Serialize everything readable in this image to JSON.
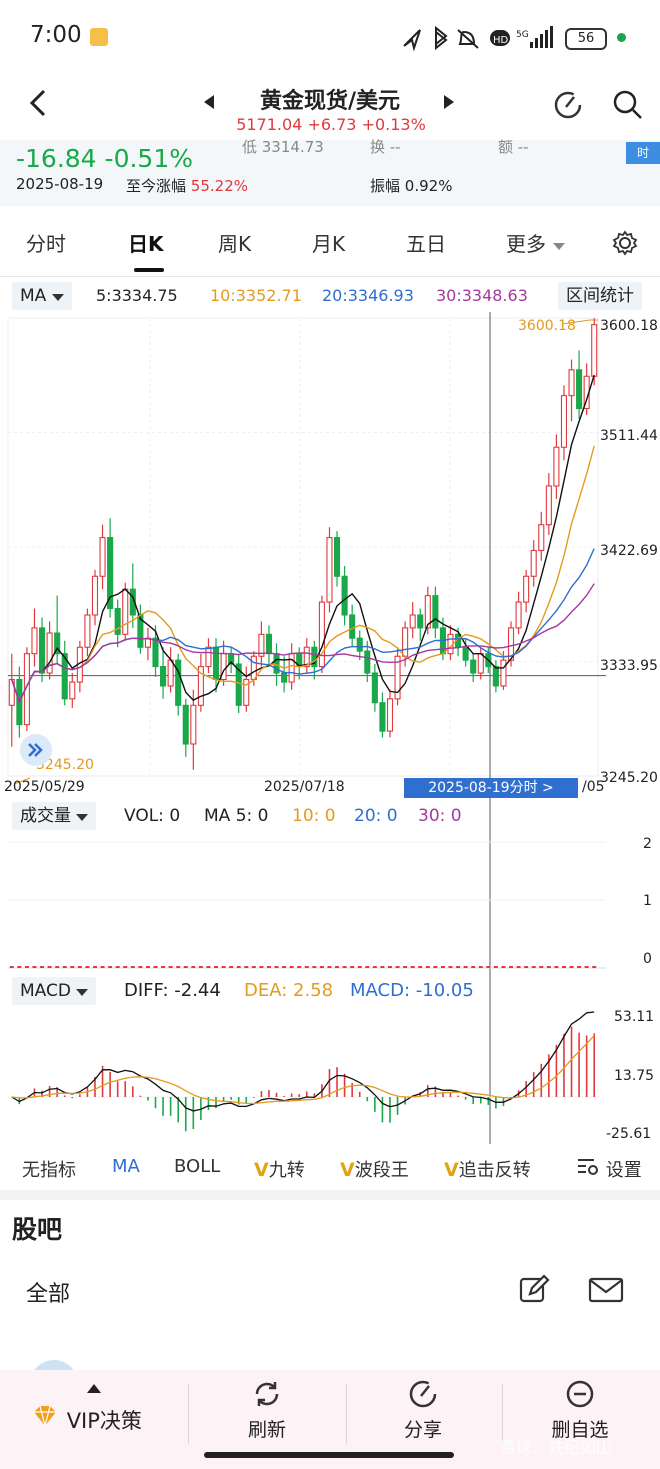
{
  "status_bar": {
    "time": "7:00",
    "battery": "56",
    "icons": "location bluetooth mute HD 5G signal"
  },
  "header": {
    "title": "黄金现货/美元",
    "price": "5171.04",
    "change": "+6.73",
    "pct": "+0.13%"
  },
  "quote": {
    "change": "-16.84",
    "change_pct": "-0.51%",
    "date": "2025-08-19",
    "since_label": "至今涨幅",
    "since_value": "55.22%",
    "low_label": "低 3314.73",
    "turnover_label": "换 --",
    "amount_label": "额 --",
    "amplitude_label": "振幅",
    "amplitude_value": "0.92%",
    "badge": "时"
  },
  "tabs": [
    "分时",
    "日K",
    "周K",
    "月K",
    "五日",
    "更多"
  ],
  "ma": {
    "selector": "MA",
    "ma5": "5:3334.75",
    "ma10": "10:3352.71",
    "ma20": "20:3346.93",
    "ma30": "30:3348.63",
    "range_stat": "区间统计"
  },
  "price_axis": {
    "top": "3600.18",
    "y2": "3511.44",
    "y3": "3422.69",
    "y4": "3333.95",
    "bottom": "3245.20",
    "max_label": "3600.18",
    "min_label": "3245.20"
  },
  "date_axis": {
    "start": "2025/05/29",
    "mid": "2025/07/18",
    "end_partial": "/05",
    "cursor": "2025-08-19分时  >"
  },
  "volume": {
    "selector": "成交量",
    "vol": "VOL: 0",
    "ma5": "MA 5: 0",
    "ma10": "10: 0",
    "ma20": "20: 0",
    "ma30": "30: 0",
    "axis_top": "2",
    "axis_mid": "1",
    "axis_bottom": "0"
  },
  "macd": {
    "selector": "MACD",
    "diff": "DIFF: -2.44",
    "dea": "DEA: 2.58",
    "macd": "MACD: -10.05",
    "axis_top": "53.11",
    "axis_mid": "13.75",
    "axis_bottom": "-25.61"
  },
  "indicators": {
    "none": "无指标",
    "ma": "MA",
    "boll": "BOLL",
    "v_glyph": "V",
    "jiuzhuan": "九转",
    "boduanwang": "波段王",
    "zhuiji": "追击反转",
    "settings": "设置"
  },
  "guba": {
    "title": "股吧",
    "tab_all": "全部"
  },
  "bottom_nav": {
    "vip": "VIP决策",
    "refresh": "刷新",
    "share": "分享",
    "remove": "删自选"
  },
  "watermark": "雪球：铁纪如山",
  "colors": {
    "up": "#e0393e",
    "down": "#19a84a",
    "ma5": "#111111",
    "ma10": "#e39a1f",
    "ma20": "#2f6fd0",
    "ma30": "#a43a9e",
    "accent": "#2f6fd0"
  },
  "chart_data": {
    "type": "candlestick",
    "x_start": "2025/05/29",
    "x_mid": "2025/07/18",
    "ylim": [
      3245.2,
      3600.18
    ],
    "candles": [
      [
        3300,
        3320,
        3340,
        3268
      ],
      [
        3320,
        3285,
        3330,
        3275
      ],
      [
        3285,
        3340,
        3345,
        3280
      ],
      [
        3340,
        3360,
        3375,
        3330
      ],
      [
        3360,
        3325,
        3368,
        3318
      ],
      [
        3325,
        3356,
        3365,
        3320
      ],
      [
        3356,
        3340,
        3385,
        3332
      ],
      [
        3340,
        3305,
        3350,
        3300
      ],
      [
        3305,
        3318,
        3325,
        3298
      ],
      [
        3318,
        3345,
        3350,
        3310
      ],
      [
        3345,
        3370,
        3375,
        3338
      ],
      [
        3370,
        3400,
        3405,
        3362
      ],
      [
        3400,
        3430,
        3440,
        3390
      ],
      [
        3430,
        3375,
        3445,
        3368
      ],
      [
        3375,
        3355,
        3382,
        3345
      ],
      [
        3355,
        3390,
        3395,
        3350
      ],
      [
        3390,
        3370,
        3410,
        3360
      ],
      [
        3370,
        3345,
        3378,
        3340
      ],
      [
        3345,
        3352,
        3360,
        3335
      ],
      [
        3352,
        3330,
        3362,
        3322
      ],
      [
        3330,
        3315,
        3345,
        3305
      ],
      [
        3315,
        3335,
        3345,
        3310
      ],
      [
        3335,
        3300,
        3340,
        3292
      ],
      [
        3300,
        3270,
        3305,
        3260
      ],
      [
        3270,
        3300,
        3312,
        3250
      ],
      [
        3300,
        3330,
        3340,
        3295
      ],
      [
        3330,
        3345,
        3352,
        3325
      ],
      [
        3345,
        3320,
        3352,
        3310
      ],
      [
        3320,
        3340,
        3350,
        3315
      ],
      [
        3340,
        3332,
        3345,
        3325
      ],
      [
        3332,
        3300,
        3340,
        3294
      ],
      [
        3300,
        3320,
        3330,
        3295
      ],
      [
        3320,
        3338,
        3342,
        3315
      ],
      [
        3338,
        3355,
        3365,
        3330
      ],
      [
        3355,
        3340,
        3362,
        3330
      ],
      [
        3340,
        3325,
        3348,
        3315
      ],
      [
        3325,
        3318,
        3338,
        3310
      ],
      [
        3318,
        3340,
        3348,
        3312
      ],
      [
        3340,
        3330,
        3345,
        3320
      ],
      [
        3330,
        3345,
        3352,
        3325
      ],
      [
        3345,
        3330,
        3350,
        3320
      ],
      [
        3330,
        3380,
        3385,
        3325
      ],
      [
        3380,
        3430,
        3438,
        3372
      ],
      [
        3430,
        3400,
        3435,
        3392
      ],
      [
        3400,
        3370,
        3408,
        3362
      ],
      [
        3370,
        3352,
        3378,
        3345
      ],
      [
        3352,
        3342,
        3358,
        3335
      ],
      [
        3342,
        3325,
        3350,
        3318
      ],
      [
        3325,
        3302,
        3332,
        3295
      ],
      [
        3302,
        3280,
        3310,
        3275
      ],
      [
        3280,
        3305,
        3312,
        3275
      ],
      [
        3305,
        3338,
        3345,
        3300
      ],
      [
        3338,
        3360,
        3365,
        3330
      ],
      [
        3360,
        3370,
        3380,
        3352
      ],
      [
        3370,
        3360,
        3375,
        3350
      ],
      [
        3360,
        3385,
        3392,
        3355
      ],
      [
        3385,
        3360,
        3392,
        3352
      ],
      [
        3360,
        3340,
        3368,
        3335
      ],
      [
        3340,
        3355,
        3362,
        3335
      ],
      [
        3355,
        3345,
        3360,
        3338
      ],
      [
        3345,
        3335,
        3352,
        3330
      ],
      [
        3335,
        3325,
        3340,
        3318
      ],
      [
        3325,
        3340,
        3345,
        3320
      ],
      [
        3340,
        3330,
        3345,
        3325
      ],
      [
        3330,
        3315,
        3335,
        3310
      ],
      [
        3315,
        3335,
        3342,
        3312
      ],
      [
        3335,
        3360,
        3365,
        3330
      ],
      [
        3360,
        3380,
        3388,
        3355
      ],
      [
        3380,
        3400,
        3405,
        3372
      ],
      [
        3400,
        3420,
        3428,
        3392
      ],
      [
        3420,
        3440,
        3450,
        3412
      ],
      [
        3440,
        3470,
        3480,
        3432
      ],
      [
        3470,
        3500,
        3510,
        3460
      ],
      [
        3500,
        3540,
        3548,
        3490
      ],
      [
        3540,
        3560,
        3568,
        3520
      ],
      [
        3560,
        3530,
        3575,
        3522
      ],
      [
        3530,
        3555,
        3565,
        3525
      ],
      [
        3555,
        3595,
        3600,
        3548
      ]
    ]
  }
}
